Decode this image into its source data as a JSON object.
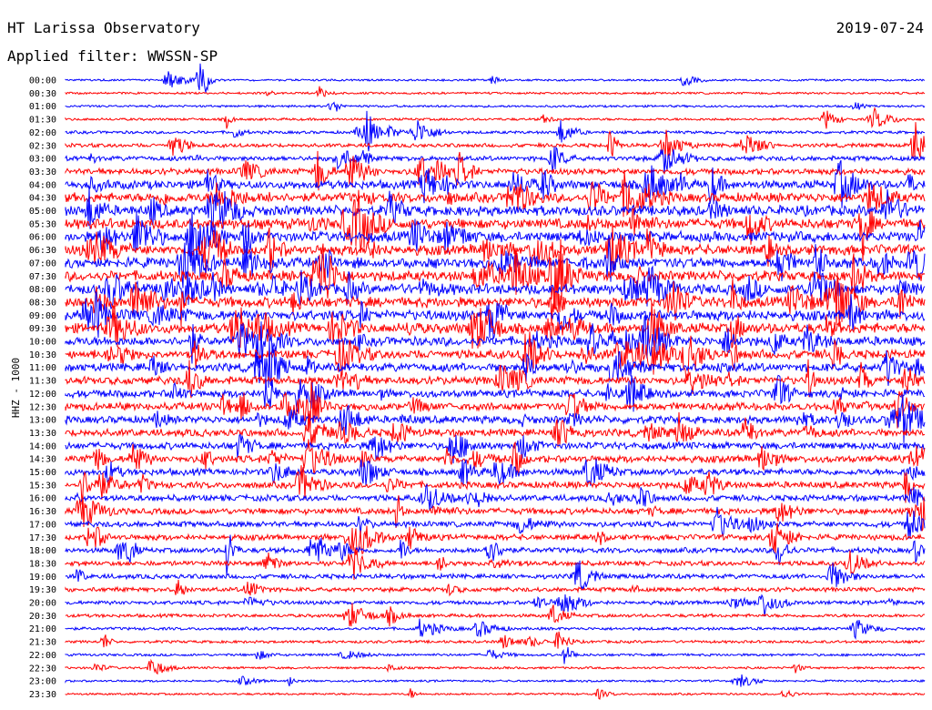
{
  "header": {
    "station": "HT Larissa Observatory",
    "filter": "Applied filter: WWSSN-SP",
    "date": "2019-07-24",
    "channel": "HHZ - 1000"
  },
  "colors": {
    "even_trace": "#0000ff",
    "odd_trace": "#ff0000",
    "background": "#ffffff"
  },
  "chart_data": {
    "type": "line",
    "title": "HT Larissa Observatory",
    "subtitle": "Applied filter: WWSSN-SP",
    "ylabel": "HHZ - 1000",
    "xlabel": "",
    "grid": false,
    "categories": [
      "00:00",
      "00:30",
      "01:00",
      "01:30",
      "02:00",
      "02:30",
      "03:00",
      "03:30",
      "04:00",
      "04:30",
      "05:00",
      "05:30",
      "06:00",
      "06:30",
      "07:00",
      "07:30",
      "08:00",
      "08:30",
      "09:00",
      "09:30",
      "10:00",
      "10:30",
      "11:00",
      "11:30",
      "12:00",
      "12:30",
      "13:00",
      "13:30",
      "14:00",
      "14:30",
      "15:00",
      "15:30",
      "16:00",
      "16:30",
      "17:00",
      "17:30",
      "18:00",
      "18:30",
      "19:00",
      "19:30",
      "20:00",
      "20:30",
      "21:00",
      "21:30",
      "22:00",
      "22:30",
      "23:00",
      "23:30"
    ],
    "noise_level": [
      0.1,
      0.1,
      0.12,
      0.15,
      0.2,
      0.3,
      0.4,
      0.55,
      0.8,
      0.9,
      1.0,
      1.0,
      1.0,
      1.0,
      1.0,
      1.0,
      1.0,
      1.0,
      1.0,
      1.0,
      0.9,
      0.85,
      0.8,
      0.75,
      0.7,
      0.7,
      0.7,
      0.7,
      0.65,
      0.65,
      0.6,
      0.6,
      0.55,
      0.55,
      0.5,
      0.5,
      0.45,
      0.4,
      0.4,
      0.35,
      0.3,
      0.25,
      0.2,
      0.18,
      0.15,
      0.12,
      0.1,
      0.1
    ]
  }
}
